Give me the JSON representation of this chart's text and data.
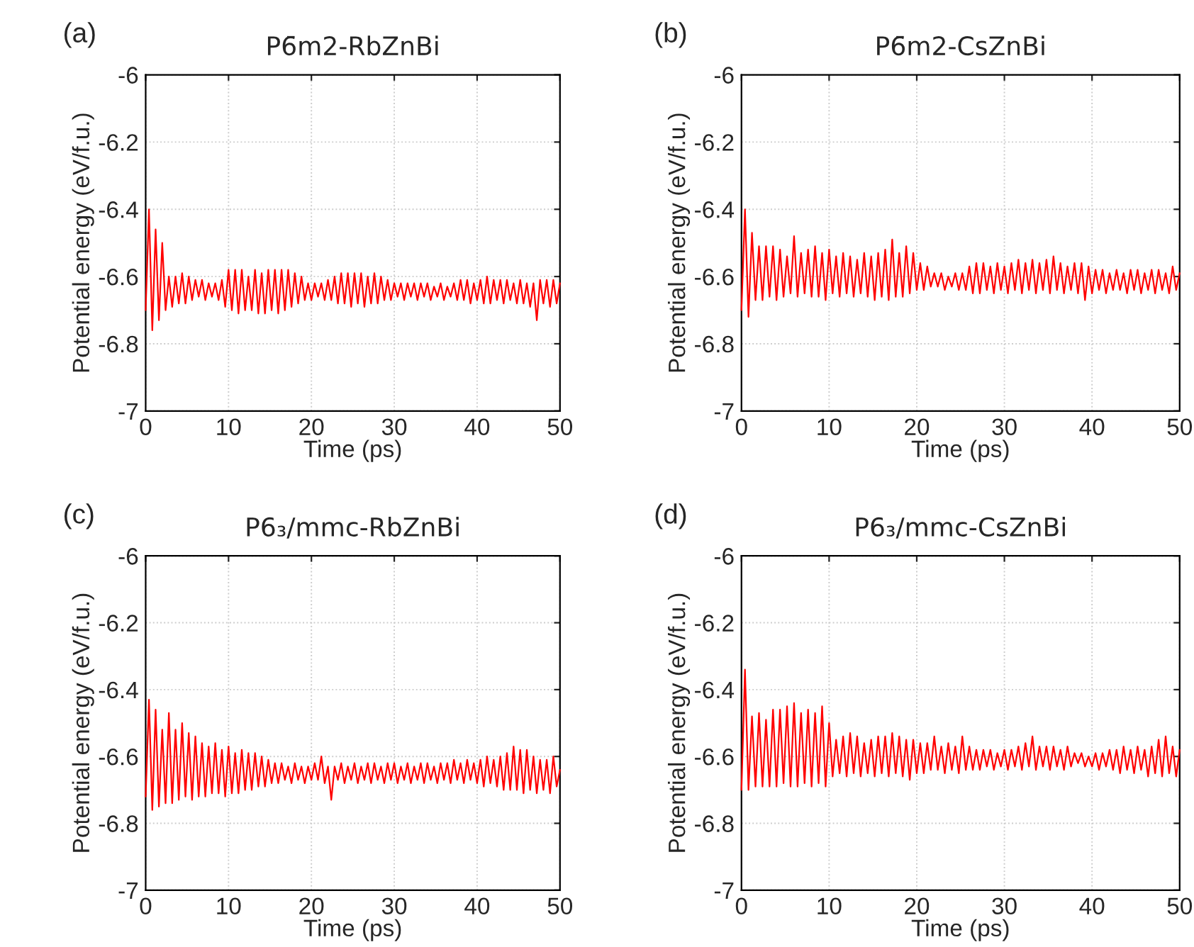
{
  "chart_data": [
    {
      "type": "line",
      "title": "P6̄m2-RbZnBi",
      "xlabel": "Time (ps)",
      "ylabel": "Potential energy (eV/f.u.)",
      "annotations": [
        "(a)"
      ],
      "xlim": [
        0,
        50
      ],
      "ylim": [
        -7,
        -6
      ],
      "xticks": [
        0,
        10,
        20,
        30,
        40,
        50
      ],
      "yticks": [
        -7,
        -6.8,
        -6.6,
        -6.4,
        -6.2,
        -6
      ],
      "grid": true,
      "line_style": "solid",
      "x": [
        0,
        0.4,
        0.8,
        1.2,
        1.6,
        2,
        2.4,
        2.8,
        3.2,
        3.6,
        4,
        4.4,
        4.8,
        5.2,
        5.6,
        6,
        6.4,
        6.8,
        7.2,
        7.6,
        8,
        8.4,
        8.8,
        9.2,
        9.6,
        10,
        10.4,
        10.8,
        11.2,
        11.6,
        12,
        12.4,
        12.8,
        13.2,
        13.6,
        14,
        14.4,
        14.8,
        15.2,
        15.6,
        16,
        16.4,
        16.8,
        17.2,
        17.6,
        18,
        18.4,
        18.8,
        19.2,
        19.6,
        20,
        20.4,
        20.8,
        21.2,
        21.6,
        22,
        22.4,
        22.8,
        23.2,
        23.6,
        24,
        24.4,
        24.8,
        25.2,
        25.6,
        26,
        26.4,
        26.8,
        27.2,
        27.6,
        28,
        28.4,
        28.8,
        29.2,
        29.6,
        30,
        30.4,
        30.8,
        31.2,
        31.6,
        32,
        32.4,
        32.8,
        33.2,
        33.6,
        34,
        34.4,
        34.8,
        35.2,
        35.6,
        36,
        36.4,
        36.8,
        37.2,
        37.6,
        38,
        38.4,
        38.8,
        39.2,
        39.6,
        40,
        40.4,
        40.8,
        41.2,
        41.6,
        42,
        42.4,
        42.8,
        43.2,
        43.6,
        44,
        44.4,
        44.8,
        45.2,
        45.6,
        46,
        46.4,
        46.8,
        47.2,
        47.6,
        48,
        48.4,
        48.8,
        49.2,
        49.6,
        50
      ],
      "series": [
        {
          "color": "#ff0000",
          "values": [
            -6.7,
            -6.4,
            -6.76,
            -6.46,
            -6.73,
            -6.5,
            -6.7,
            -6.6,
            -6.69,
            -6.6,
            -6.68,
            -6.59,
            -6.68,
            -6.6,
            -6.67,
            -6.61,
            -6.66,
            -6.61,
            -6.67,
            -6.62,
            -6.66,
            -6.62,
            -6.67,
            -6.61,
            -6.69,
            -6.58,
            -6.7,
            -6.58,
            -6.71,
            -6.58,
            -6.7,
            -6.6,
            -6.7,
            -6.58,
            -6.71,
            -6.59,
            -6.71,
            -6.58,
            -6.7,
            -6.58,
            -6.71,
            -6.58,
            -6.7,
            -6.58,
            -6.69,
            -6.59,
            -6.68,
            -6.6,
            -6.67,
            -6.62,
            -6.67,
            -6.62,
            -6.66,
            -6.62,
            -6.67,
            -6.61,
            -6.67,
            -6.6,
            -6.68,
            -6.59,
            -6.68,
            -6.59,
            -6.69,
            -6.59,
            -6.68,
            -6.59,
            -6.69,
            -6.6,
            -6.68,
            -6.59,
            -6.68,
            -6.6,
            -6.67,
            -6.61,
            -6.67,
            -6.62,
            -6.66,
            -6.62,
            -6.67,
            -6.62,
            -6.66,
            -6.62,
            -6.67,
            -6.62,
            -6.66,
            -6.62,
            -6.67,
            -6.63,
            -6.66,
            -6.62,
            -6.67,
            -6.63,
            -6.66,
            -6.62,
            -6.67,
            -6.61,
            -6.67,
            -6.61,
            -6.68,
            -6.62,
            -6.67,
            -6.61,
            -6.68,
            -6.6,
            -6.68,
            -6.61,
            -6.67,
            -6.61,
            -6.68,
            -6.61,
            -6.67,
            -6.62,
            -6.68,
            -6.61,
            -6.68,
            -6.62,
            -6.69,
            -6.62,
            -6.73,
            -6.61,
            -6.68,
            -6.61,
            -6.69,
            -6.61,
            -6.68,
            -6.62
          ]
        }
      ]
    },
    {
      "type": "line",
      "title": "P6̄m2-CsZnBi",
      "xlabel": "Time (ps)",
      "ylabel": "Potential energy (eV/f.u.)",
      "annotations": [
        "(b)"
      ],
      "xlim": [
        0,
        50
      ],
      "ylim": [
        -7,
        -6
      ],
      "xticks": [
        0,
        10,
        20,
        30,
        40,
        50
      ],
      "yticks": [
        -7,
        -6.8,
        -6.6,
        -6.4,
        -6.2,
        -6
      ],
      "grid": true,
      "line_style": "solid",
      "x": [
        0,
        0.4,
        0.8,
        1.2,
        1.6,
        2,
        2.4,
        2.8,
        3.2,
        3.6,
        4,
        4.4,
        4.8,
        5.2,
        5.6,
        6,
        6.4,
        6.8,
        7.2,
        7.6,
        8,
        8.4,
        8.8,
        9.2,
        9.6,
        10,
        10.4,
        10.8,
        11.2,
        11.6,
        12,
        12.4,
        12.8,
        13.2,
        13.6,
        14,
        14.4,
        14.8,
        15.2,
        15.6,
        16,
        16.4,
        16.8,
        17.2,
        17.6,
        18,
        18.4,
        18.8,
        19.2,
        19.6,
        20,
        20.4,
        20.8,
        21.2,
        21.6,
        22,
        22.4,
        22.8,
        23.2,
        23.6,
        24,
        24.4,
        24.8,
        25.2,
        25.6,
        26,
        26.4,
        26.8,
        27.2,
        27.6,
        28,
        28.4,
        28.8,
        29.2,
        29.6,
        30,
        30.4,
        30.8,
        31.2,
        31.6,
        32,
        32.4,
        32.8,
        33.2,
        33.6,
        34,
        34.4,
        34.8,
        35.2,
        35.6,
        36,
        36.4,
        36.8,
        37.2,
        37.6,
        38,
        38.4,
        38.8,
        39.2,
        39.6,
        40,
        40.4,
        40.8,
        41.2,
        41.6,
        42,
        42.4,
        42.8,
        43.2,
        43.6,
        44,
        44.4,
        44.8,
        45.2,
        45.6,
        46,
        46.4,
        46.8,
        47.2,
        47.6,
        48,
        48.4,
        48.8,
        49.2,
        49.6,
        50
      ],
      "series": [
        {
          "color": "#ff0000",
          "values": [
            -6.7,
            -6.4,
            -6.72,
            -6.47,
            -6.67,
            -6.51,
            -6.67,
            -6.51,
            -6.66,
            -6.51,
            -6.67,
            -6.52,
            -6.66,
            -6.54,
            -6.65,
            -6.48,
            -6.66,
            -6.53,
            -6.65,
            -6.52,
            -6.66,
            -6.51,
            -6.66,
            -6.53,
            -6.67,
            -6.52,
            -6.65,
            -6.54,
            -6.66,
            -6.53,
            -6.65,
            -6.54,
            -6.66,
            -6.55,
            -6.65,
            -6.53,
            -6.66,
            -6.54,
            -6.67,
            -6.53,
            -6.66,
            -6.52,
            -6.67,
            -6.49,
            -6.66,
            -6.53,
            -6.66,
            -6.51,
            -6.65,
            -6.53,
            -6.64,
            -6.56,
            -6.64,
            -6.57,
            -6.63,
            -6.59,
            -6.63,
            -6.59,
            -6.64,
            -6.6,
            -6.63,
            -6.59,
            -6.64,
            -6.59,
            -6.64,
            -6.57,
            -6.65,
            -6.56,
            -6.65,
            -6.56,
            -6.64,
            -6.57,
            -6.65,
            -6.56,
            -6.64,
            -6.57,
            -6.65,
            -6.56,
            -6.64,
            -6.55,
            -6.65,
            -6.56,
            -6.64,
            -6.55,
            -6.65,
            -6.56,
            -6.64,
            -6.55,
            -6.65,
            -6.54,
            -6.64,
            -6.56,
            -6.65,
            -6.57,
            -6.64,
            -6.56,
            -6.65,
            -6.56,
            -6.67,
            -6.57,
            -6.65,
            -6.58,
            -6.64,
            -6.58,
            -6.65,
            -6.59,
            -6.64,
            -6.58,
            -6.64,
            -6.59,
            -6.65,
            -6.58,
            -6.64,
            -6.58,
            -6.65,
            -6.59,
            -6.64,
            -6.58,
            -6.65,
            -6.58,
            -6.64,
            -6.59,
            -6.65,
            -6.57,
            -6.64,
            -6.59
          ]
        }
      ]
    },
    {
      "type": "line",
      "title": "P6₃/mmc-RbZnBi",
      "xlabel": "Time (ps)",
      "ylabel": "Potential energy (eV/f.u.)",
      "annotations": [
        "(c)"
      ],
      "xlim": [
        0,
        50
      ],
      "ylim": [
        -7,
        -6
      ],
      "xticks": [
        0,
        10,
        20,
        30,
        40,
        50
      ],
      "yticks": [
        -7,
        -6.8,
        -6.6,
        -6.4,
        -6.2,
        -6
      ],
      "grid": true,
      "line_style": "solid",
      "x": [
        0,
        0.4,
        0.8,
        1.2,
        1.6,
        2,
        2.4,
        2.8,
        3.2,
        3.6,
        4,
        4.4,
        4.8,
        5.2,
        5.6,
        6,
        6.4,
        6.8,
        7.2,
        7.6,
        8,
        8.4,
        8.8,
        9.2,
        9.6,
        10,
        10.4,
        10.8,
        11.2,
        11.6,
        12,
        12.4,
        12.8,
        13.2,
        13.6,
        14,
        14.4,
        14.8,
        15.2,
        15.6,
        16,
        16.4,
        16.8,
        17.2,
        17.6,
        18,
        18.4,
        18.8,
        19.2,
        19.6,
        20,
        20.4,
        20.8,
        21.2,
        21.6,
        22,
        22.4,
        22.8,
        23.2,
        23.6,
        24,
        24.4,
        24.8,
        25.2,
        25.6,
        26,
        26.4,
        26.8,
        27.2,
        27.6,
        28,
        28.4,
        28.8,
        29.2,
        29.6,
        30,
        30.4,
        30.8,
        31.2,
        31.6,
        32,
        32.4,
        32.8,
        33.2,
        33.6,
        34,
        34.4,
        34.8,
        35.2,
        35.6,
        36,
        36.4,
        36.8,
        37.2,
        37.6,
        38,
        38.4,
        38.8,
        39.2,
        39.6,
        40,
        40.4,
        40.8,
        41.2,
        41.6,
        42,
        42.4,
        42.8,
        43.2,
        43.6,
        44,
        44.4,
        44.8,
        45.2,
        45.6,
        46,
        46.4,
        46.8,
        47.2,
        47.6,
        48,
        48.4,
        48.8,
        49.2,
        49.6,
        50
      ],
      "series": [
        {
          "color": "#ff0000",
          "values": [
            -6.72,
            -6.43,
            -6.76,
            -6.46,
            -6.75,
            -6.52,
            -6.74,
            -6.47,
            -6.74,
            -6.52,
            -6.73,
            -6.5,
            -6.72,
            -6.53,
            -6.73,
            -6.54,
            -6.72,
            -6.56,
            -6.72,
            -6.57,
            -6.71,
            -6.56,
            -6.71,
            -6.58,
            -6.72,
            -6.57,
            -6.71,
            -6.59,
            -6.71,
            -6.58,
            -6.7,
            -6.59,
            -6.7,
            -6.59,
            -6.69,
            -6.6,
            -6.69,
            -6.61,
            -6.68,
            -6.62,
            -6.68,
            -6.62,
            -6.67,
            -6.63,
            -6.68,
            -6.62,
            -6.67,
            -6.63,
            -6.68,
            -6.63,
            -6.67,
            -6.62,
            -6.67,
            -6.6,
            -6.68,
            -6.63,
            -6.73,
            -6.63,
            -6.67,
            -6.62,
            -6.68,
            -6.63,
            -6.67,
            -6.62,
            -6.68,
            -6.63,
            -6.67,
            -6.62,
            -6.68,
            -6.62,
            -6.67,
            -6.63,
            -6.68,
            -6.62,
            -6.67,
            -6.62,
            -6.68,
            -6.63,
            -6.67,
            -6.62,
            -6.68,
            -6.63,
            -6.67,
            -6.62,
            -6.68,
            -6.62,
            -6.67,
            -6.63,
            -6.68,
            -6.62,
            -6.67,
            -6.62,
            -6.68,
            -6.61,
            -6.67,
            -6.62,
            -6.68,
            -6.61,
            -6.67,
            -6.62,
            -6.68,
            -6.61,
            -6.69,
            -6.6,
            -6.68,
            -6.61,
            -6.69,
            -6.6,
            -6.7,
            -6.59,
            -6.7,
            -6.57,
            -6.7,
            -6.58,
            -6.71,
            -6.58,
            -6.7,
            -6.6,
            -6.71,
            -6.61,
            -6.7,
            -6.61,
            -6.71,
            -6.6,
            -6.69,
            -6.64
          ]
        }
      ]
    },
    {
      "type": "line",
      "title": "P6₃/mmc-CsZnBi",
      "xlabel": "Time (ps)",
      "ylabel": "Potential energy (eV/f.u.)",
      "annotations": [
        "(d)"
      ],
      "xlim": [
        0,
        50
      ],
      "ylim": [
        -7,
        -6
      ],
      "xticks": [
        0,
        10,
        20,
        30,
        40,
        50
      ],
      "yticks": [
        -7,
        -6.8,
        -6.6,
        -6.4,
        -6.2,
        -6
      ],
      "grid": true,
      "line_style": "solid",
      "x": [
        0,
        0.4,
        0.8,
        1.2,
        1.6,
        2,
        2.4,
        2.8,
        3.2,
        3.6,
        4,
        4.4,
        4.8,
        5.2,
        5.6,
        6,
        6.4,
        6.8,
        7.2,
        7.6,
        8,
        8.4,
        8.8,
        9.2,
        9.6,
        10,
        10.4,
        10.8,
        11.2,
        11.6,
        12,
        12.4,
        12.8,
        13.2,
        13.6,
        14,
        14.4,
        14.8,
        15.2,
        15.6,
        16,
        16.4,
        16.8,
        17.2,
        17.6,
        18,
        18.4,
        18.8,
        19.2,
        19.6,
        20,
        20.4,
        20.8,
        21.2,
        21.6,
        22,
        22.4,
        22.8,
        23.2,
        23.6,
        24,
        24.4,
        24.8,
        25.2,
        25.6,
        26,
        26.4,
        26.8,
        27.2,
        27.6,
        28,
        28.4,
        28.8,
        29.2,
        29.6,
        30,
        30.4,
        30.8,
        31.2,
        31.6,
        32,
        32.4,
        32.8,
        33.2,
        33.6,
        34,
        34.4,
        34.8,
        35.2,
        35.6,
        36,
        36.4,
        36.8,
        37.2,
        37.6,
        38,
        38.4,
        38.8,
        39.2,
        39.6,
        40,
        40.4,
        40.8,
        41.2,
        41.6,
        42,
        42.4,
        42.8,
        43.2,
        43.6,
        44,
        44.4,
        44.8,
        45.2,
        45.6,
        46,
        46.4,
        46.8,
        47.2,
        47.6,
        48,
        48.4,
        48.8,
        49.2,
        49.6,
        50
      ],
      "series": [
        {
          "color": "#ff0000",
          "values": [
            -6.7,
            -6.34,
            -6.7,
            -6.48,
            -6.69,
            -6.47,
            -6.69,
            -6.49,
            -6.69,
            -6.46,
            -6.69,
            -6.46,
            -6.68,
            -6.45,
            -6.69,
            -6.44,
            -6.69,
            -6.47,
            -6.68,
            -6.46,
            -6.69,
            -6.47,
            -6.68,
            -6.45,
            -6.69,
            -6.5,
            -6.66,
            -6.55,
            -6.65,
            -6.54,
            -6.66,
            -6.53,
            -6.65,
            -6.54,
            -6.66,
            -6.56,
            -6.65,
            -6.55,
            -6.66,
            -6.54,
            -6.65,
            -6.54,
            -6.66,
            -6.53,
            -6.65,
            -6.54,
            -6.66,
            -6.55,
            -6.67,
            -6.55,
            -6.65,
            -6.56,
            -6.65,
            -6.56,
            -6.64,
            -6.54,
            -6.64,
            -6.57,
            -6.65,
            -6.56,
            -6.64,
            -6.57,
            -6.65,
            -6.54,
            -6.64,
            -6.57,
            -6.64,
            -6.58,
            -6.64,
            -6.58,
            -6.63,
            -6.58,
            -6.64,
            -6.59,
            -6.63,
            -6.58,
            -6.64,
            -6.58,
            -6.63,
            -6.57,
            -6.64,
            -6.56,
            -6.63,
            -6.54,
            -6.64,
            -6.57,
            -6.63,
            -6.57,
            -6.64,
            -6.57,
            -6.63,
            -6.58,
            -6.64,
            -6.57,
            -6.63,
            -6.59,
            -6.62,
            -6.59,
            -6.63,
            -6.6,
            -6.63,
            -6.59,
            -6.64,
            -6.59,
            -6.63,
            -6.58,
            -6.64,
            -6.58,
            -6.65,
            -6.57,
            -6.64,
            -6.58,
            -6.65,
            -6.57,
            -6.64,
            -6.58,
            -6.66,
            -6.57,
            -6.65,
            -6.55,
            -6.66,
            -6.54,
            -6.65,
            -6.57,
            -6.66,
            -6.58
          ]
        }
      ]
    }
  ]
}
